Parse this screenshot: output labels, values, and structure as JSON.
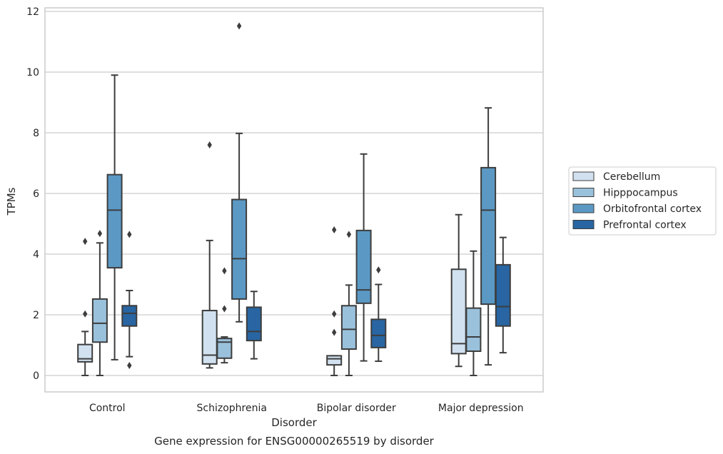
{
  "chart_data": {
    "type": "box",
    "title": "",
    "caption": "Gene expression for ENSG00000265519 by disorder",
    "xlabel": "Disorder",
    "ylabel": "TPMs",
    "ylim": [
      -0.55,
      12.15
    ],
    "yticks": [
      0,
      2,
      4,
      6,
      8,
      10,
      12
    ],
    "grid": "horizontal",
    "legend_position": "right",
    "categories": [
      "Control",
      "Schizophrenia",
      "Bipolar disorder",
      "Major depression"
    ],
    "series": [
      {
        "name": "Cerebellum",
        "color": "#d1e1f0",
        "boxes": [
          {
            "whisker_low": 0.0,
            "q1": 0.45,
            "median": 0.55,
            "q3": 1.02,
            "whisker_high": 1.45,
            "outliers": [
              2.03,
              4.42
            ]
          },
          {
            "whisker_low": 0.25,
            "q1": 0.38,
            "median": 0.67,
            "q3": 2.14,
            "whisker_high": 4.45,
            "outliers": [
              7.6
            ]
          },
          {
            "whisker_low": 0.0,
            "q1": 0.35,
            "median": 0.55,
            "q3": 0.65,
            "whisker_high": 0.65,
            "outliers": [
              1.42,
              2.03,
              4.8
            ]
          },
          {
            "whisker_low": 0.3,
            "q1": 0.72,
            "median": 1.05,
            "q3": 3.5,
            "whisker_high": 5.3,
            "outliers": []
          }
        ]
      },
      {
        "name": "Hipppocampus",
        "color": "#9ac1dc",
        "boxes": [
          {
            "whisker_low": 0.0,
            "q1": 1.1,
            "median": 1.72,
            "q3": 2.52,
            "whisker_high": 4.37,
            "outliers": [
              4.68
            ]
          },
          {
            "whisker_low": 0.42,
            "q1": 0.57,
            "median": 1.1,
            "q3": 1.22,
            "whisker_high": 1.27,
            "outliers": [
              2.2,
              3.45
            ]
          },
          {
            "whisker_low": 0.0,
            "q1": 0.87,
            "median": 1.52,
            "q3": 2.3,
            "whisker_high": 2.98,
            "outliers": [
              4.65
            ]
          },
          {
            "whisker_low": 0.0,
            "q1": 0.8,
            "median": 1.27,
            "q3": 2.22,
            "whisker_high": 4.1,
            "outliers": []
          }
        ]
      },
      {
        "name": "Orbitofrontal cortex",
        "color": "#5b99c4",
        "boxes": [
          {
            "whisker_low": 0.52,
            "q1": 3.55,
            "median": 5.45,
            "q3": 6.62,
            "whisker_high": 9.9,
            "outliers": []
          },
          {
            "whisker_low": 1.77,
            "q1": 2.52,
            "median": 3.85,
            "q3": 5.8,
            "whisker_high": 7.98,
            "outliers": [
              11.52
            ]
          },
          {
            "whisker_low": 0.48,
            "q1": 2.38,
            "median": 2.82,
            "q3": 4.78,
            "whisker_high": 7.3,
            "outliers": []
          },
          {
            "whisker_low": 0.35,
            "q1": 2.35,
            "median": 5.45,
            "q3": 6.85,
            "whisker_high": 8.82,
            "outliers": []
          }
        ]
      },
      {
        "name": "Prefrontal cortex",
        "color": "#2865a2",
        "boxes": [
          {
            "whisker_low": 0.62,
            "q1": 1.63,
            "median": 2.05,
            "q3": 2.3,
            "whisker_high": 2.8,
            "outliers": [
              0.33,
              4.65
            ]
          },
          {
            "whisker_low": 0.55,
            "q1": 1.15,
            "median": 1.45,
            "q3": 2.25,
            "whisker_high": 2.77,
            "outliers": []
          },
          {
            "whisker_low": 0.47,
            "q1": 0.92,
            "median": 1.32,
            "q3": 1.85,
            "whisker_high": 3.0,
            "outliers": [
              3.48
            ]
          },
          {
            "whisker_low": 0.75,
            "q1": 1.63,
            "median": 2.27,
            "q3": 3.65,
            "whisker_high": 4.55,
            "outliers": []
          }
        ]
      }
    ]
  }
}
